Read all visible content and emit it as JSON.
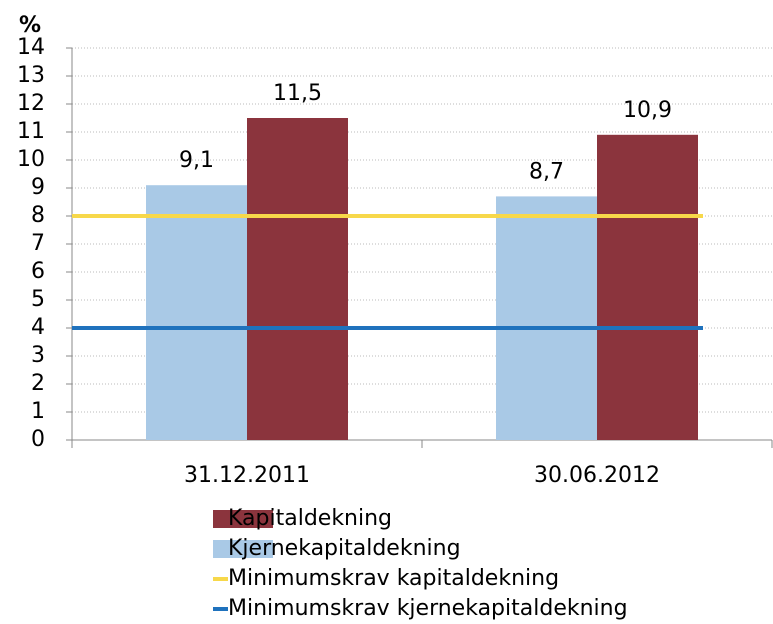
{
  "chart_data": {
    "type": "bar",
    "y_label": "%",
    "categories": [
      "31.12.2011",
      "30.06.2012"
    ],
    "series": [
      {
        "name": "Kjernekapitaldekning",
        "type": "bar",
        "color": "#a9c9e6",
        "values": [
          9.1,
          8.7
        ],
        "value_labels": [
          "9,1",
          "8,7"
        ]
      },
      {
        "name": "Kapitaldekning",
        "type": "bar",
        "color": "#8b343d",
        "values": [
          11.5,
          10.9
        ],
        "value_labels": [
          "11,5",
          "10,9"
        ]
      },
      {
        "name": "Minimumskrav kapitaldekning",
        "type": "line",
        "color": "#f7d84a",
        "values": [
          8,
          8
        ]
      },
      {
        "name": "Minimumskrav kjernekapitaldekning",
        "type": "line",
        "color": "#1f72bd",
        "values": [
          4,
          4
        ]
      }
    ],
    "ylim": [
      0,
      14
    ],
    "yticks": [
      0,
      1,
      2,
      3,
      4,
      5,
      6,
      7,
      8,
      9,
      10,
      11,
      12,
      13,
      14
    ],
    "grid": true
  }
}
